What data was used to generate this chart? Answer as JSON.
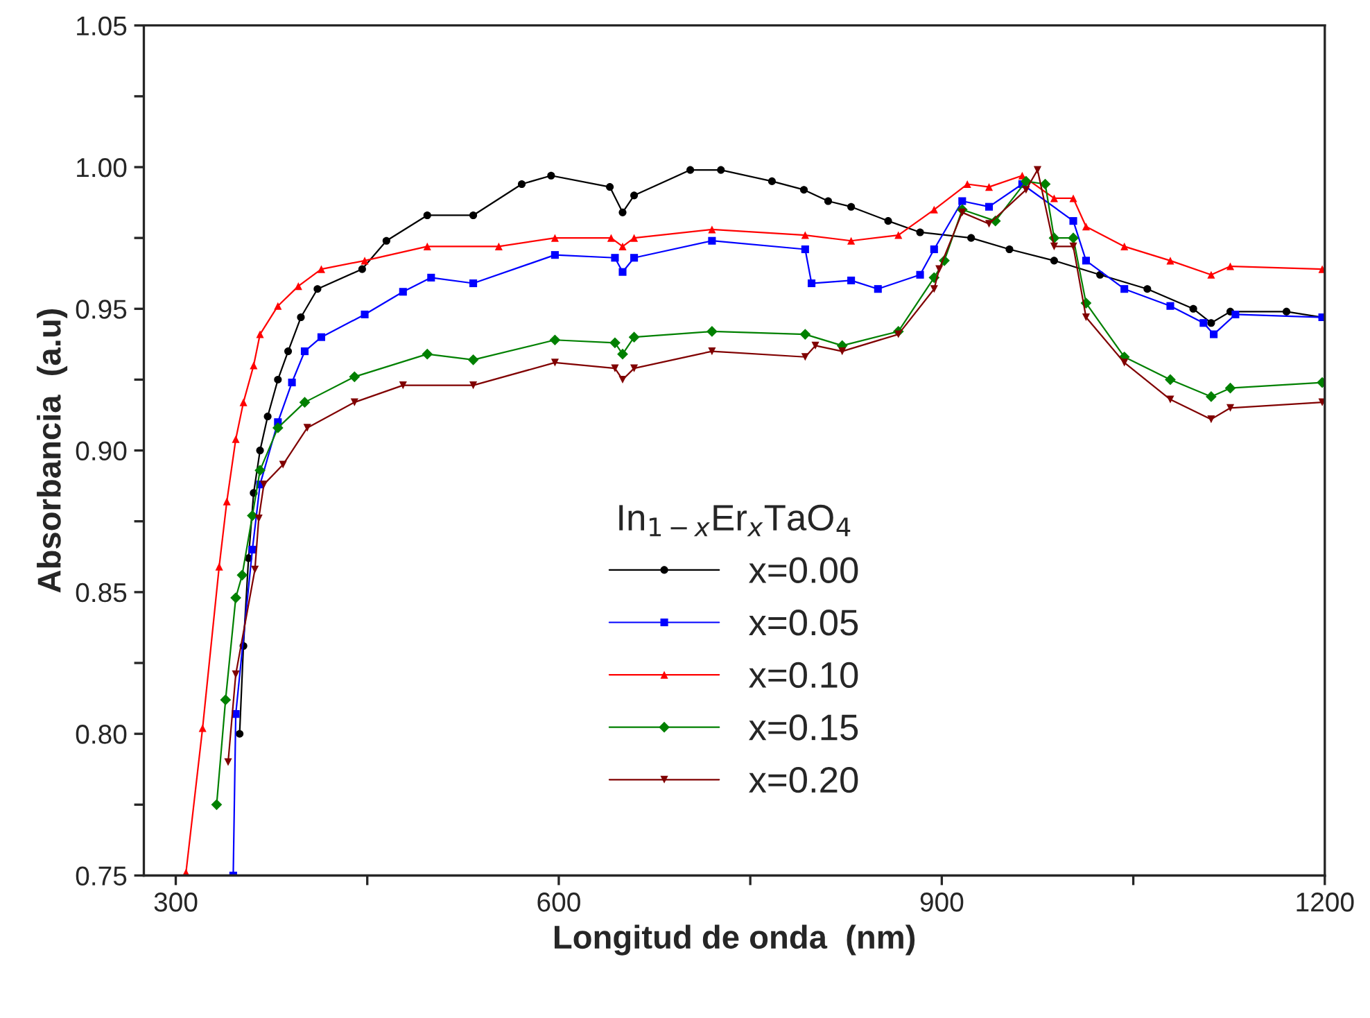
{
  "chart_data": {
    "type": "line",
    "xlabel": "Longitud de onda  (nm)",
    "ylabel": "Absorbancia  (a.u)",
    "legend_title": "In$_{1−x}$Er$_{x}$TaO$_{4}$",
    "legend": "bottom",
    "grid": false,
    "line_style": "solid",
    "xlim": [
      275,
      1200
    ],
    "ylim": [
      0.75,
      1.05
    ],
    "xticks": [
      300,
      {
        "value": 450,
        "label": null
      },
      600,
      {
        "value": 750,
        "label": null
      },
      900,
      {
        "value": 1050,
        "label": null
      },
      1200
    ],
    "yticks": [
      {
        "value": 0.75,
        "label": "0.75"
      },
      {
        "value": 0.775,
        "label": null
      },
      {
        "value": 0.8,
        "label": "0.80"
      },
      {
        "value": 0.825,
        "label": null
      },
      {
        "value": 0.85,
        "label": "0.85"
      },
      {
        "value": 0.875,
        "label": null
      },
      {
        "value": 0.9,
        "label": "0.90"
      },
      {
        "value": 0.925,
        "label": null
      },
      {
        "value": 0.95,
        "label": "0.95"
      },
      {
        "value": 0.975,
        "label": null
      },
      {
        "value": 1.0,
        "label": "1.00"
      },
      {
        "value": 1.025,
        "label": null
      },
      {
        "value": 1.05,
        "label": "1.05"
      }
    ],
    "series": [
      {
        "name": "x=0.00",
        "color": "#000000",
        "marker": "circle",
        "x": [
          350,
          353,
          357,
          361,
          366,
          372,
          380,
          388,
          398,
          411,
          446,
          465,
          497,
          533,
          571,
          594,
          640,
          650,
          659,
          703,
          727,
          767,
          792,
          811,
          829,
          858,
          883,
          923,
          953,
          988,
          1024,
          1061,
          1097,
          1111,
          1126,
          1170,
          1198
        ],
        "values": [
          0.8,
          0.831,
          0.862,
          0.885,
          0.9,
          0.912,
          0.925,
          0.935,
          0.947,
          0.957,
          0.964,
          0.974,
          0.983,
          0.983,
          0.994,
          0.997,
          0.993,
          0.984,
          0.99,
          0.999,
          0.999,
          0.995,
          0.992,
          0.988,
          0.986,
          0.981,
          0.977,
          0.975,
          0.971,
          0.967,
          0.962,
          0.957,
          0.95,
          0.945,
          0.949,
          0.949,
          0.947
        ]
      },
      {
        "name": "x=0.05",
        "color": "#0000ff",
        "marker": "square",
        "x": [
          345,
          347,
          360,
          366,
          380,
          391,
          401,
          414,
          448,
          478,
          500,
          533,
          597,
          644,
          650,
          659,
          720,
          793,
          798,
          829,
          850,
          883,
          894,
          916,
          937,
          963,
          1003,
          1013,
          1043,
          1079,
          1105,
          1113,
          1130,
          1198
        ],
        "values": [
          0.75,
          0.807,
          0.865,
          0.888,
          0.91,
          0.924,
          0.935,
          0.94,
          0.948,
          0.956,
          0.961,
          0.959,
          0.969,
          0.968,
          0.963,
          0.968,
          0.974,
          0.971,
          0.959,
          0.96,
          0.957,
          0.962,
          0.971,
          0.988,
          0.986,
          0.994,
          0.981,
          0.967,
          0.957,
          0.951,
          0.945,
          0.941,
          0.948,
          0.947
        ]
      },
      {
        "name": "x=0.10",
        "color": "#ff0000",
        "marker": "triangle",
        "x": [
          308,
          321,
          334,
          340,
          347,
          353,
          361,
          366,
          380,
          396,
          414,
          448,
          497,
          553,
          597,
          641,
          650,
          659,
          720,
          793,
          829,
          866,
          894,
          920,
          937,
          963,
          988,
          1003,
          1013,
          1043,
          1079,
          1111,
          1126,
          1198
        ],
        "values": [
          0.751,
          0.802,
          0.859,
          0.882,
          0.904,
          0.917,
          0.93,
          0.941,
          0.951,
          0.958,
          0.964,
          0.967,
          0.972,
          0.972,
          0.975,
          0.975,
          0.972,
          0.975,
          0.978,
          0.976,
          0.974,
          0.976,
          0.985,
          0.994,
          0.993,
          0.997,
          0.989,
          0.989,
          0.979,
          0.972,
          0.967,
          0.962,
          0.965,
          0.964
        ]
      },
      {
        "name": "x=0.15",
        "color": "#008000",
        "marker": "diamond",
        "x": [
          332,
          339,
          347,
          352,
          360,
          366,
          380,
          401,
          440,
          497,
          533,
          597,
          644,
          650,
          659,
          720,
          793,
          822,
          866,
          894,
          902,
          916,
          942,
          966,
          981,
          988,
          1003,
          1013,
          1043,
          1079,
          1111,
          1126,
          1198
        ],
        "values": [
          0.775,
          0.812,
          0.848,
          0.856,
          0.877,
          0.893,
          0.908,
          0.917,
          0.926,
          0.934,
          0.932,
          0.939,
          0.938,
          0.934,
          0.94,
          0.942,
          0.941,
          0.937,
          0.942,
          0.961,
          0.967,
          0.985,
          0.981,
          0.995,
          0.994,
          0.975,
          0.975,
          0.952,
          0.933,
          0.925,
          0.919,
          0.922,
          0.924
        ]
      },
      {
        "name": "x=0.20",
        "color": "#800000",
        "marker": "triangle_down",
        "x": [
          341,
          347,
          362,
          365,
          369,
          384,
          403,
          440,
          478,
          533,
          597,
          644,
          650,
          659,
          720,
          793,
          801,
          822,
          866,
          894,
          898,
          916,
          937,
          966,
          975,
          988,
          1003,
          1013,
          1043,
          1079,
          1111,
          1126,
          1198
        ],
        "values": [
          0.79,
          0.821,
          0.858,
          0.876,
          0.888,
          0.895,
          0.908,
          0.917,
          0.923,
          0.923,
          0.931,
          0.929,
          0.925,
          0.929,
          0.935,
          0.933,
          0.937,
          0.935,
          0.941,
          0.957,
          0.964,
          0.984,
          0.98,
          0.992,
          0.999,
          0.972,
          0.972,
          0.947,
          0.931,
          0.918,
          0.911,
          0.915,
          0.917
        ]
      }
    ]
  }
}
